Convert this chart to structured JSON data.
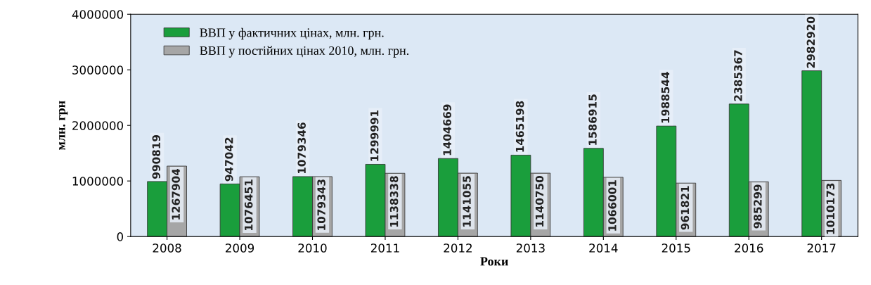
{
  "chart_data": {
    "type": "bar",
    "xlabel": "Роки",
    "ylabel": "млн. грн",
    "categories": [
      "2008",
      "2009",
      "2010",
      "2011",
      "2012",
      "2013",
      "2014",
      "2015",
      "2016",
      "2017"
    ],
    "series": [
      {
        "name": "ВВП у фактичних цінах, млн. грн.",
        "color": "#1a9e3c",
        "values": [
          990819,
          947042,
          1079346,
          1299991,
          1404669,
          1465198,
          1586915,
          1988544,
          2385367,
          2982920
        ]
      },
      {
        "name": "ВВП у постійних цінах 2010, млн. грн.",
        "color": "#a6a6a6",
        "values": [
          1267904,
          1076451,
          1079343,
          1138338,
          1141055,
          1140750,
          1066001,
          961821,
          985299,
          1010173
        ]
      }
    ],
    "ylim": [
      0,
      4000000
    ],
    "yticks": [
      0,
      1000000,
      2000000,
      3000000,
      4000000
    ],
    "grid": false,
    "legend": "top left",
    "data_labels": true
  }
}
